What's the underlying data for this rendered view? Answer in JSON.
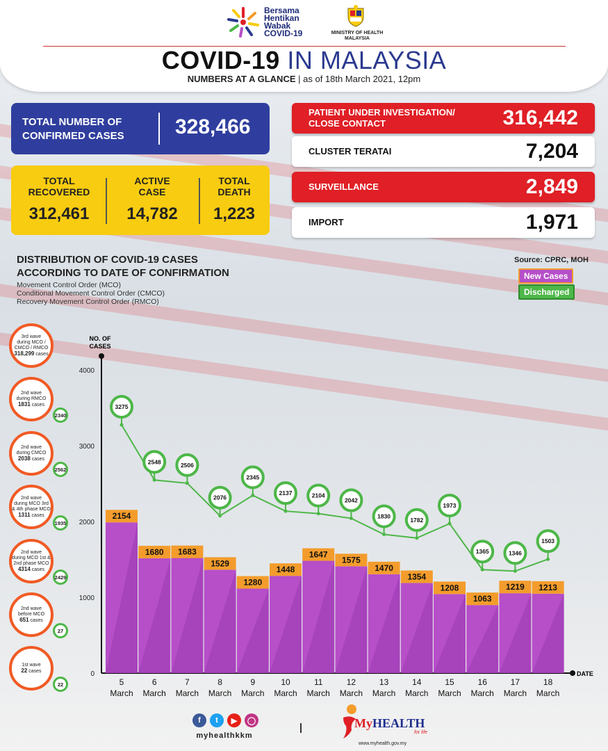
{
  "header": {
    "campaign": [
      "Bersama",
      "Hentikan",
      "Wabak",
      "COVID-19"
    ],
    "ministry": [
      "MINISTRY OF HEALTH",
      "MALAYSIA"
    ],
    "title_main": "COVID-19",
    "title_accent": "IN MALAYSIA",
    "subtitle_bold": "NUMBERS AT A GLANCE",
    "subtitle_rest": "| as of 18th March 2021, 12pm"
  },
  "summary": {
    "total_label_1": "TOTAL NUMBER OF",
    "total_label_2": "CONFIRMED CASES",
    "total_value": "328,466",
    "recovered_label_1": "TOTAL",
    "recovered_label_2": "RECOVERED",
    "recovered_value": "312,461",
    "active_label_1": "ACTIVE",
    "active_label_2": "CASE",
    "active_value": "14,782",
    "death_label_1": "TOTAL",
    "death_label_2": "DEATH",
    "death_value": "1,223"
  },
  "categories": {
    "pui_label_1": "PATIENT UNDER INVESTIGATION/",
    "pui_label_2": "CLOSE CONTACT",
    "pui_value": "316,442",
    "cluster_label": "CLUSTER TERATAI",
    "cluster_value": "7,204",
    "surveillance_label": "SURVEILLANCE",
    "surveillance_value": "2,849",
    "import_label": "IMPORT",
    "import_value": "1,971"
  },
  "distribution": {
    "title_1": "DISTRIBUTION OF COVID-19 CASES",
    "title_2": "ACCORDING TO DATE OF CONFIRMATION",
    "mco": "Movement Control Order (MCO)",
    "cmco": "Conditional Movement Control Order (CMCO)",
    "rmco": "Recovery Movement Control Order (RMCO)",
    "source": "Source: CPRC, MOH",
    "legend_new": "New Cases",
    "legend_discharged": "Discharged"
  },
  "waves": [
    {
      "l1": "3rd wave",
      "l2": "during MCO /",
      "l3": "CMCO / RMCO",
      "cases": "318,299",
      "l4": "cases",
      "badge": ""
    },
    {
      "l1": "2nd wave",
      "l2": "during RMCO",
      "l3": "",
      "cases": "1831",
      "l4": "cases",
      "badge": "2340"
    },
    {
      "l1": "2nd wave",
      "l2": "during CMCO",
      "l3": "",
      "cases": "2038",
      "l4": "cases",
      "badge": "2562"
    },
    {
      "l1": "2nd wave",
      "l2": "during MCO 3rd",
      "l3": "& 4th phase MCO",
      "cases": "1311",
      "l4": "cases",
      "badge": "1935"
    },
    {
      "l1": "2nd wave",
      "l2": "during MCO 1st &",
      "l3": "2nd phase MCO",
      "cases": "4314",
      "l4": "cases",
      "badge": "2429"
    },
    {
      "l1": "2nd wave",
      "l2": "before MCO",
      "l3": "",
      "cases": "651",
      "l4": "cases",
      "badge": "27"
    },
    {
      "l1": "1st wave",
      "l2": "",
      "l3": "",
      "cases": "22",
      "l4": "cases",
      "badge": "22"
    }
  ],
  "chart_data": {
    "type": "bar",
    "title": "DISTRIBUTION OF COVID-19 CASES ACCORDING TO DATE OF CONFIRMATION",
    "ylabel": "NO. OF CASES",
    "xlabel": "DATE",
    "ylim": [
      0,
      4000
    ],
    "yticks": [
      0,
      1000,
      2000,
      3000,
      4000
    ],
    "categories": [
      "5",
      "6",
      "7",
      "8",
      "9",
      "10",
      "11",
      "12",
      "13",
      "14",
      "15",
      "16",
      "17",
      "18"
    ],
    "category_sub": "March",
    "series": [
      {
        "name": "New Cases",
        "type": "bar",
        "color": "#b64fc8",
        "values": [
          2154,
          1680,
          1683,
          1529,
          1280,
          1448,
          1647,
          1575,
          1470,
          1354,
          1208,
          1063,
          1219,
          1213
        ]
      },
      {
        "name": "Discharged",
        "type": "line",
        "color": "#4db748",
        "values": [
          3275,
          2548,
          2506,
          2076,
          2345,
          2137,
          2104,
          2042,
          1830,
          1782,
          1973,
          1365,
          1346,
          1503
        ]
      }
    ]
  },
  "footer": {
    "handle": "myhealthkkm",
    "brand_a": "My",
    "brand_b": "HEALTH",
    "tagline": "for life",
    "website": "www.myhealth.gov.my"
  },
  "colors": {
    "navy": "#2f3e9e",
    "yellow": "#f8cc10",
    "red": "#e01f26",
    "bar_purple": "#b64fc8",
    "bar_orange": "#f39c2c",
    "line_green": "#4db748"
  }
}
